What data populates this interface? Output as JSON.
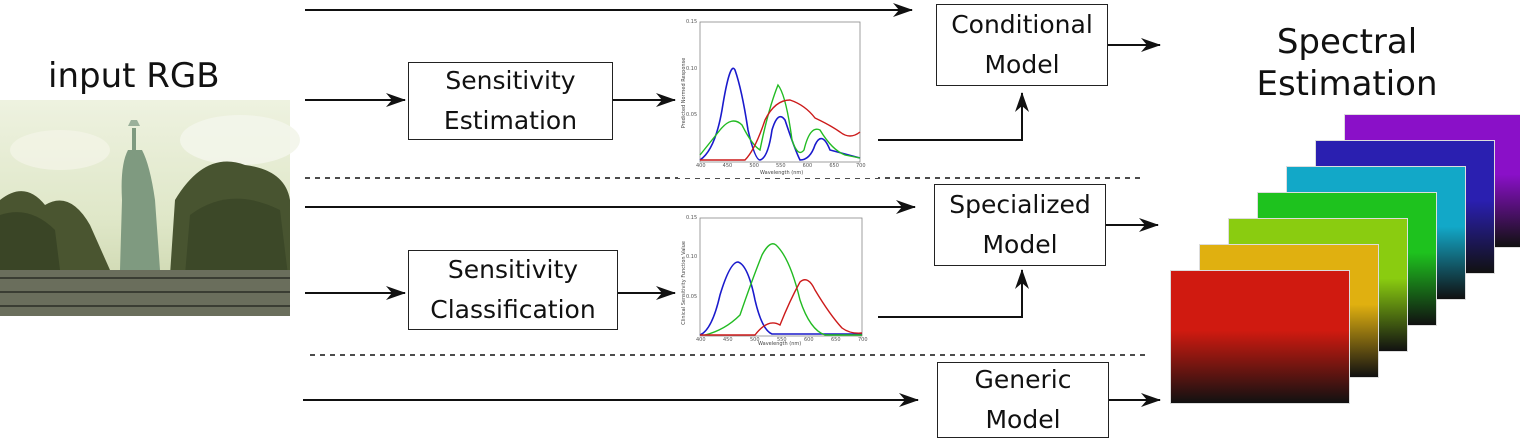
{
  "input": {
    "title": "input RGB",
    "image_desc_icon": "statue-of-liberty-photo"
  },
  "output": {
    "title_line1": "Spectral",
    "title_line2": "Estimation",
    "layers": [
      "#8a10c8",
      "#2a1fb0",
      "#12a8c8",
      "#1ec21e",
      "#8acc10",
      "#e0b010",
      "#d01a10"
    ]
  },
  "boxes": {
    "sensitivity_estimation": [
      "Sensitivity",
      "Estimation"
    ],
    "sensitivity_classification": [
      "Sensitivity",
      "Classification"
    ],
    "conditional": [
      "Conditional",
      "Model"
    ],
    "specialized": [
      "Specialized",
      "Model"
    ],
    "generic": [
      "Generic",
      "Model"
    ]
  },
  "plot1": {
    "ylabel": "Predicted Normed Response",
    "xlabel": "Wavelength (nm)",
    "xticks": [
      "400",
      "450",
      "500",
      "550",
      "600",
      "650",
      "700"
    ],
    "yticks": [
      "0.15",
      "0.10",
      "0.05"
    ],
    "colors": [
      "#1a1acc",
      "#22bb22",
      "#cc1a1a"
    ]
  },
  "plot2": {
    "ylabel": "Clinical Sensitivity Function Value",
    "xlabel": "Wavelength (nm)",
    "xticks": [
      "400",
      "450",
      "500",
      "550",
      "600",
      "650",
      "700"
    ],
    "yticks": [
      "0.15",
      "0.10",
      "0.05"
    ],
    "colors": [
      "#1a1acc",
      "#22bb22",
      "#cc1a1a"
    ]
  }
}
